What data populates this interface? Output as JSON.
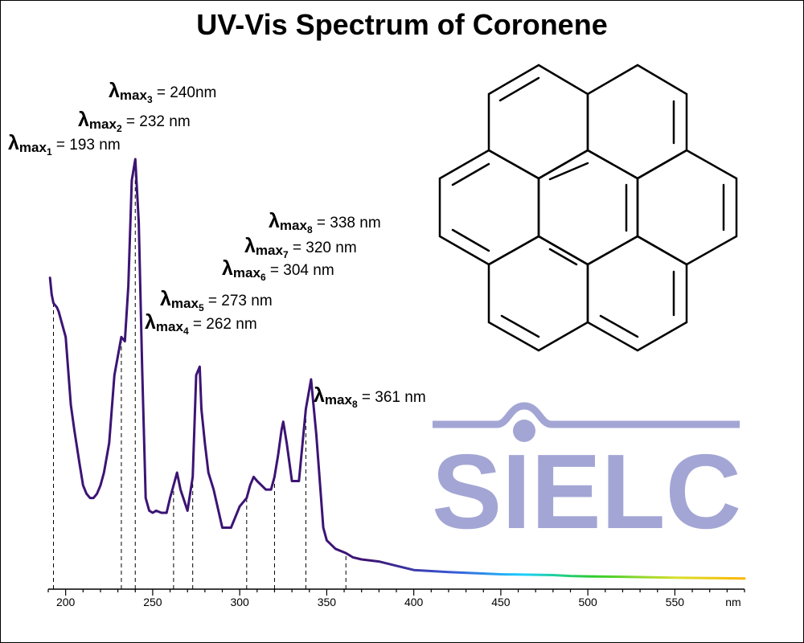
{
  "title": "UV-Vis Spectrum of Coronene",
  "unit_label": "nm",
  "logo_text": "SIELC",
  "chart_data": {
    "type": "line",
    "title": "UV-Vis Spectrum of Coronene",
    "xlabel": "nm",
    "ylabel": "",
    "xlim": [
      190,
      590
    ],
    "ylim": [
      0,
      1
    ],
    "grid": false,
    "y_axis_shown": false,
    "x_ticks": [
      200,
      250,
      300,
      350,
      400,
      450,
      500,
      550
    ],
    "curve_color": "#3c1474",
    "visible_tail_gradient": [
      "#3c1474",
      "#3a5ad8",
      "#18d0ff",
      "#2ccc2c",
      "#d8e02a",
      "#ffb300"
    ],
    "x": [
      191,
      192,
      193,
      195,
      196,
      200,
      203,
      205,
      208,
      210,
      212,
      214,
      216,
      218,
      220,
      222,
      225,
      228,
      232,
      234,
      236,
      238,
      240,
      242,
      244,
      246,
      248,
      250,
      252,
      255,
      258,
      260,
      262,
      264,
      266,
      270,
      273,
      275,
      277,
      278,
      280,
      282,
      285,
      290,
      295,
      298,
      300,
      304,
      306,
      308,
      310,
      315,
      318,
      320,
      322,
      324,
      325,
      327,
      330,
      334,
      338,
      341,
      344,
      348,
      350,
      355,
      361,
      365,
      370,
      380,
      390,
      400,
      420,
      450,
      480,
      490,
      500,
      520,
      550,
      570,
      590
    ],
    "y": [
      0.72,
      0.68,
      0.66,
      0.65,
      0.64,
      0.58,
      0.42,
      0.36,
      0.28,
      0.23,
      0.21,
      0.2,
      0.2,
      0.21,
      0.23,
      0.26,
      0.33,
      0.49,
      0.58,
      0.57,
      0.7,
      0.95,
      1.0,
      0.85,
      0.5,
      0.2,
      0.17,
      0.165,
      0.17,
      0.165,
      0.165,
      0.2,
      0.23,
      0.26,
      0.22,
      0.17,
      0.25,
      0.49,
      0.51,
      0.41,
      0.33,
      0.26,
      0.22,
      0.13,
      0.13,
      0.16,
      0.18,
      0.2,
      0.23,
      0.25,
      0.24,
      0.22,
      0.22,
      0.25,
      0.3,
      0.36,
      0.38,
      0.33,
      0.24,
      0.24,
      0.41,
      0.48,
      0.35,
      0.13,
      0.1,
      0.08,
      0.07,
      0.06,
      0.055,
      0.05,
      0.04,
      0.03,
      0.025,
      0.02,
      0.018,
      0.016,
      0.015,
      0.014,
      0.012,
      0.011,
      0.01
    ],
    "annotations": [
      {
        "sub": "1",
        "text": " = 193 nm",
        "x": 193
      },
      {
        "sub": "2",
        "text": " = 232 nm",
        "x": 232
      },
      {
        "sub": "3",
        "text": " = 240nm",
        "x": 240
      },
      {
        "sub": "4",
        "text": " = 262 nm",
        "x": 262
      },
      {
        "sub": "5",
        "text": " = 273 nm",
        "x": 273
      },
      {
        "sub": "6",
        "text": " = 304 nm",
        "x": 304
      },
      {
        "sub": "7",
        "text": " = 320 nm",
        "x": 320
      },
      {
        "sub": "8",
        "text": " = 338 nm",
        "x": 338
      },
      {
        "sub": "8",
        "text": " = 361 nm",
        "x": 361
      }
    ]
  }
}
